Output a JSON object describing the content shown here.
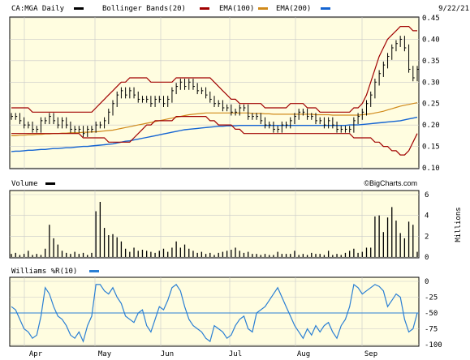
{
  "chart_data": {
    "type": "stock-chart",
    "date": "9/22/21",
    "watermark": "©BigCharts.com",
    "colors": {
      "panel_bg": "#fffde0",
      "grid": "#c8c8c8",
      "price": "#000000",
      "bollinger": "#a00000",
      "ema100": "#d08a1a",
      "ema200": "#1464d2",
      "volume": "#000000",
      "williams": "#2a7fd4"
    },
    "x_labels": [
      "Apr",
      "May",
      "Jun",
      "Jul",
      "Aug",
      "Sep"
    ],
    "price_panel": {
      "legend": [
        {
          "label": "CA:MGA Daily",
          "color": "#000000"
        },
        {
          "label": "Bollinger Bands(20)",
          "color": "#a00000"
        },
        {
          "label": "EMA(100)",
          "color": "#d08a1a"
        },
        {
          "label": "EMA(200)",
          "color": "#1464d2"
        }
      ],
      "ylim": [
        0.1,
        0.45
      ],
      "yticks": [
        "0.45",
        "0.40",
        "0.35",
        "0.30",
        "0.25",
        "0.20",
        "0.15",
        "0.10"
      ],
      "close": [
        0.22,
        0.22,
        0.21,
        0.2,
        0.2,
        0.19,
        0.19,
        0.21,
        0.21,
        0.22,
        0.21,
        0.2,
        0.21,
        0.2,
        0.19,
        0.19,
        0.19,
        0.18,
        0.19,
        0.19,
        0.2,
        0.2,
        0.21,
        0.23,
        0.25,
        0.27,
        0.28,
        0.27,
        0.28,
        0.27,
        0.26,
        0.26,
        0.26,
        0.25,
        0.26,
        0.26,
        0.25,
        0.26,
        0.28,
        0.29,
        0.3,
        0.29,
        0.3,
        0.29,
        0.28,
        0.28,
        0.27,
        0.26,
        0.25,
        0.25,
        0.24,
        0.24,
        0.23,
        0.23,
        0.24,
        0.24,
        0.22,
        0.22,
        0.22,
        0.21,
        0.2,
        0.2,
        0.19,
        0.19,
        0.2,
        0.2,
        0.21,
        0.22,
        0.23,
        0.23,
        0.22,
        0.22,
        0.21,
        0.21,
        0.2,
        0.21,
        0.2,
        0.19,
        0.19,
        0.19,
        0.19,
        0.21,
        0.22,
        0.23,
        0.25,
        0.27,
        0.3,
        0.32,
        0.34,
        0.36,
        0.38,
        0.39,
        0.4,
        0.38,
        0.33,
        0.31,
        0.33
      ],
      "bollinger_upper": [
        0.24,
        0.24,
        0.24,
        0.24,
        0.24,
        0.23,
        0.23,
        0.23,
        0.23,
        0.23,
        0.23,
        0.23,
        0.23,
        0.23,
        0.23,
        0.23,
        0.23,
        0.23,
        0.23,
        0.23,
        0.24,
        0.25,
        0.26,
        0.27,
        0.28,
        0.29,
        0.3,
        0.3,
        0.31,
        0.31,
        0.31,
        0.31,
        0.31,
        0.3,
        0.3,
        0.3,
        0.3,
        0.3,
        0.3,
        0.31,
        0.31,
        0.31,
        0.31,
        0.31,
        0.31,
        0.31,
        0.31,
        0.31,
        0.3,
        0.29,
        0.28,
        0.27,
        0.26,
        0.26,
        0.25,
        0.25,
        0.25,
        0.25,
        0.25,
        0.25,
        0.24,
        0.24,
        0.24,
        0.24,
        0.24,
        0.24,
        0.25,
        0.25,
        0.25,
        0.25,
        0.24,
        0.24,
        0.24,
        0.23,
        0.23,
        0.23,
        0.23,
        0.23,
        0.23,
        0.23,
        0.23,
        0.24,
        0.24,
        0.25,
        0.27,
        0.3,
        0.33,
        0.36,
        0.38,
        0.4,
        0.41,
        0.42,
        0.43,
        0.43,
        0.43,
        0.42,
        0.42
      ],
      "bollinger_lower": [
        0.18,
        0.18,
        0.18,
        0.18,
        0.18,
        0.18,
        0.18,
        0.18,
        0.18,
        0.18,
        0.18,
        0.18,
        0.18,
        0.18,
        0.18,
        0.18,
        0.18,
        0.17,
        0.17,
        0.17,
        0.17,
        0.17,
        0.17,
        0.16,
        0.16,
        0.16,
        0.16,
        0.16,
        0.16,
        0.17,
        0.18,
        0.19,
        0.2,
        0.2,
        0.21,
        0.21,
        0.21,
        0.21,
        0.21,
        0.22,
        0.22,
        0.22,
        0.22,
        0.22,
        0.22,
        0.22,
        0.22,
        0.21,
        0.21,
        0.2,
        0.2,
        0.2,
        0.2,
        0.19,
        0.19,
        0.18,
        0.18,
        0.18,
        0.18,
        0.18,
        0.18,
        0.18,
        0.18,
        0.18,
        0.18,
        0.18,
        0.18,
        0.18,
        0.18,
        0.18,
        0.18,
        0.18,
        0.18,
        0.18,
        0.18,
        0.18,
        0.18,
        0.18,
        0.18,
        0.18,
        0.18,
        0.17,
        0.17,
        0.17,
        0.17,
        0.17,
        0.16,
        0.16,
        0.15,
        0.15,
        0.14,
        0.14,
        0.13,
        0.13,
        0.14,
        0.16,
        0.18
      ],
      "ema100": [
        0.175,
        0.175,
        0.176,
        0.176,
        0.177,
        0.177,
        0.178,
        0.178,
        0.179,
        0.179,
        0.18,
        0.18,
        0.181,
        0.181,
        0.182,
        0.182,
        0.182,
        0.183,
        0.183,
        0.184,
        0.184,
        0.185,
        0.186,
        0.187,
        0.188,
        0.19,
        0.192,
        0.194,
        0.196,
        0.198,
        0.2,
        0.202,
        0.204,
        0.206,
        0.208,
        0.21,
        0.212,
        0.214,
        0.216,
        0.218,
        0.22,
        0.222,
        0.224,
        0.225,
        0.226,
        0.227,
        0.228,
        0.228,
        0.228,
        0.228,
        0.228,
        0.228,
        0.228,
        0.228,
        0.228,
        0.228,
        0.228,
        0.227,
        0.227,
        0.227,
        0.226,
        0.226,
        0.225,
        0.225,
        0.225,
        0.225,
        0.225,
        0.225,
        0.225,
        0.225,
        0.225,
        0.225,
        0.224,
        0.224,
        0.224,
        0.224,
        0.223,
        0.223,
        0.223,
        0.223,
        0.223,
        0.223,
        0.223,
        0.224,
        0.225,
        0.226,
        0.228,
        0.23,
        0.232,
        0.235,
        0.238,
        0.241,
        0.244,
        0.246,
        0.248,
        0.25,
        0.252
      ],
      "ema200": [
        0.138,
        0.139,
        0.139,
        0.14,
        0.141,
        0.141,
        0.142,
        0.143,
        0.143,
        0.144,
        0.145,
        0.145,
        0.146,
        0.147,
        0.147,
        0.148,
        0.149,
        0.15,
        0.15,
        0.151,
        0.152,
        0.153,
        0.154,
        0.155,
        0.156,
        0.158,
        0.16,
        0.162,
        0.163,
        0.165,
        0.167,
        0.169,
        0.171,
        0.173,
        0.175,
        0.177,
        0.179,
        0.181,
        0.183,
        0.185,
        0.187,
        0.189,
        0.19,
        0.191,
        0.192,
        0.193,
        0.194,
        0.195,
        0.196,
        0.197,
        0.197,
        0.198,
        0.198,
        0.198,
        0.199,
        0.199,
        0.199,
        0.199,
        0.199,
        0.199,
        0.199,
        0.199,
        0.199,
        0.199,
        0.199,
        0.199,
        0.199,
        0.199,
        0.199,
        0.199,
        0.199,
        0.199,
        0.199,
        0.199,
        0.199,
        0.199,
        0.199,
        0.199,
        0.199,
        0.199,
        0.2,
        0.2,
        0.2,
        0.201,
        0.202,
        0.203,
        0.204,
        0.205,
        0.206,
        0.207,
        0.208,
        0.209,
        0.21,
        0.212,
        0.214,
        0.216,
        0.218
      ]
    },
    "volume_panel": {
      "legend": "Volume",
      "ylabel": "Millions",
      "ylim": [
        0,
        6
      ],
      "yticks": [
        "6",
        "4",
        "2",
        "0"
      ],
      "values": [
        0.3,
        0.4,
        0.2,
        0.3,
        0.6,
        0.2,
        0.3,
        0.2,
        0.8,
        3.1,
        1.8,
        1.2,
        0.6,
        0.4,
        0.3,
        0.5,
        0.3,
        0.4,
        0.2,
        0.4,
        4.4,
        5.3,
        2.8,
        2.1,
        2.2,
        1.9,
        1.5,
        0.8,
        0.5,
        0.9,
        0.6,
        0.7,
        0.6,
        0.5,
        0.4,
        0.6,
        0.8,
        0.5,
        0.9,
        1.5,
        0.9,
        1.2,
        0.8,
        0.6,
        0.4,
        0.5,
        0.3,
        0.4,
        0.2,
        0.4,
        0.5,
        0.6,
        0.7,
        0.9,
        0.6,
        0.4,
        0.5,
        0.3,
        0.3,
        0.2,
        0.3,
        0.2,
        0.2,
        0.5,
        0.3,
        0.3,
        0.3,
        0.6,
        0.2,
        0.3,
        0.2,
        0.4,
        0.3,
        0.3,
        0.2,
        0.6,
        0.2,
        0.3,
        0.2,
        0.4,
        0.6,
        0.8,
        0.4,
        0.5,
        0.9,
        0.9,
        3.9,
        4.0,
        2.4,
        3.8,
        4.8,
        3.5,
        2.3,
        1.8,
        3.4,
        3.1,
        0.5
      ]
    },
    "williams_panel": {
      "legend": "Williams %R(10)",
      "ylim": [
        -100,
        0
      ],
      "yticks": [
        "0",
        "-25",
        "-50",
        "-75",
        "-100"
      ],
      "reference": -50,
      "values": [
        -40,
        -45,
        -60,
        -75,
        -80,
        -90,
        -85,
        -55,
        -10,
        -20,
        -40,
        -55,
        -60,
        -70,
        -85,
        -90,
        -80,
        -95,
        -70,
        -55,
        -5,
        -5,
        -15,
        -20,
        -10,
        -25,
        -35,
        -55,
        -60,
        -65,
        -50,
        -45,
        -70,
        -80,
        -60,
        -40,
        -45,
        -30,
        -10,
        -5,
        -15,
        -40,
        -60,
        -70,
        -75,
        -80,
        -90,
        -95,
        -70,
        -75,
        -80,
        -90,
        -85,
        -70,
        -60,
        -55,
        -75,
        -80,
        -50,
        -45,
        -40,
        -30,
        -20,
        -10,
        -25,
        -40,
        -55,
        -70,
        -80,
        -90,
        -75,
        -85,
        -70,
        -80,
        -70,
        -65,
        -80,
        -90,
        -70,
        -60,
        -40,
        -5,
        -10,
        -20,
        -15,
        -10,
        -5,
        -8,
        -15,
        -40,
        -30,
        -20,
        -25,
        -60,
        -80,
        -75,
        -50
      ]
    }
  }
}
